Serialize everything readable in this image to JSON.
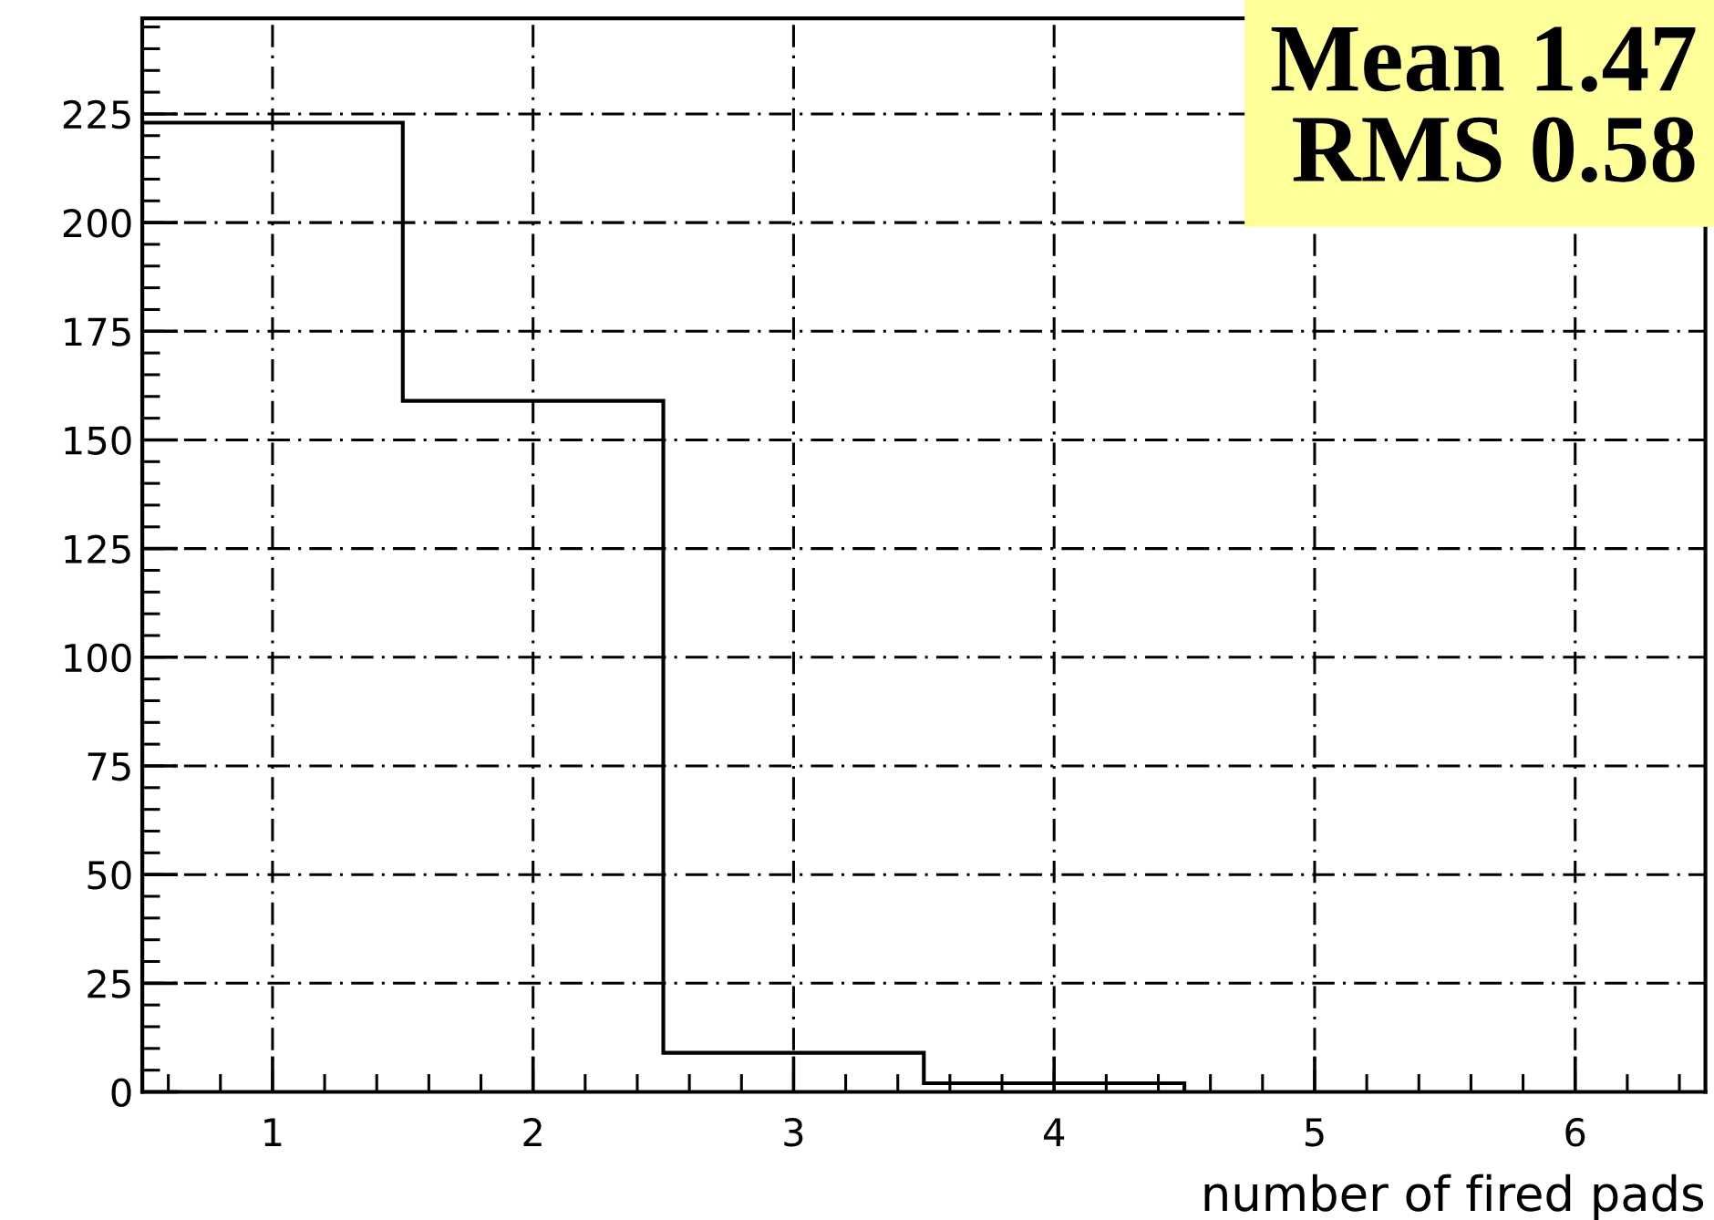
{
  "chart_data": {
    "type": "histogram",
    "xlabel": "number of fired pads",
    "bins": [
      0.5,
      1.5,
      2.5,
      3.5,
      4.5
    ],
    "values": [
      223,
      159,
      9,
      2
    ],
    "color": "#000000",
    "xlim": [
      0.5,
      6.5
    ],
    "xticks": [
      1,
      2,
      3,
      4,
      5,
      6
    ],
    "ylim": [
      0,
      247
    ],
    "yticks": [
      0,
      25,
      50,
      75,
      100,
      125,
      150,
      175,
      200,
      225
    ],
    "grid": true,
    "annotations": [
      "Mean 1.47\nRMS 0.58"
    ]
  }
}
